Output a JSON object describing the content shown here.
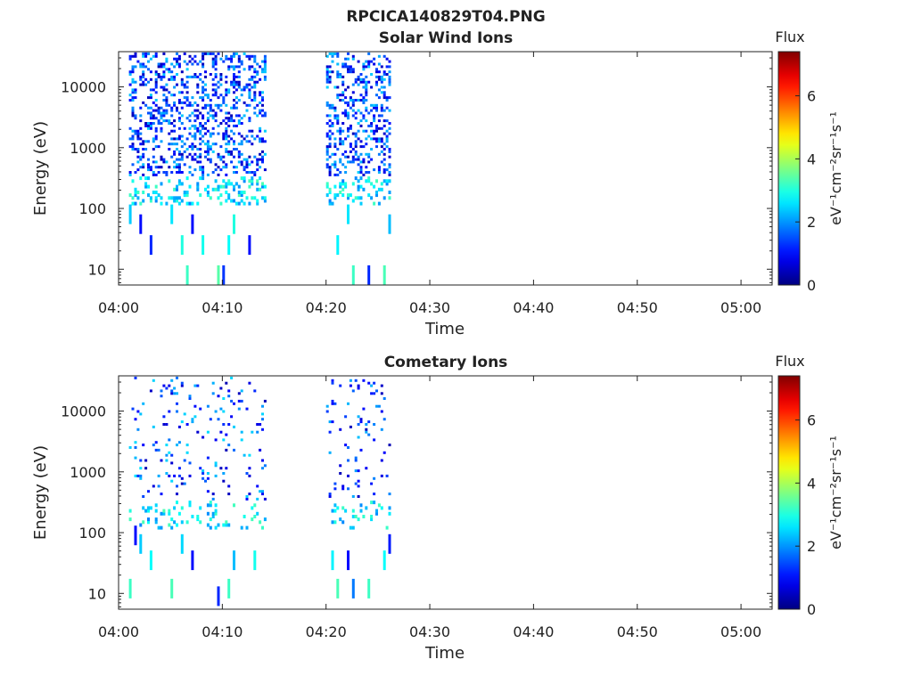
{
  "figure": {
    "title": "RPCICA140829T04.PNG"
  },
  "colorbar": {
    "title": "Flux",
    "unit_text": "eV⁻¹cm⁻²sr⁻¹s⁻¹",
    "ticks": [
      "0",
      "2",
      "4",
      "6"
    ],
    "range": [
      0,
      7.4
    ],
    "colormap": "jet"
  },
  "chart_data": [
    {
      "type": "heatmap",
      "title": "Solar Wind Ions",
      "xlabel": "Time",
      "ylabel": "Energy (eV)",
      "yscale": "log",
      "xlim": [
        "04:00",
        "05:03"
      ],
      "ylim": [
        5.5,
        38000
      ],
      "xticks": [
        "04:00",
        "04:10",
        "04:20",
        "04:30",
        "04:40",
        "04:50",
        "05:00"
      ],
      "yticks": [
        "10",
        "100",
        "1000",
        "10000"
      ],
      "data_intervals": [
        [
          "04:01",
          "04:14"
        ],
        [
          "04:20",
          "04:26"
        ]
      ],
      "cells": [
        {
          "t": "04:01",
          "e": 80,
          "flux": 2.4
        },
        {
          "t": "04:02",
          "e": 55,
          "flux": 1.0
        },
        {
          "t": "04:03",
          "e": 25,
          "flux": 1.2
        },
        {
          "t": "04:05",
          "e": 80,
          "flux": 2.6
        },
        {
          "t": "04:06",
          "e": 25,
          "flux": 3.0
        },
        {
          "t": "04:06.5",
          "e": 8,
          "flux": 3.2
        },
        {
          "t": "04:07",
          "e": 55,
          "flux": 1.0
        },
        {
          "t": "04:08",
          "e": 25,
          "flux": 2.9
        },
        {
          "t": "04:09.5",
          "e": 8,
          "flux": 3.4
        },
        {
          "t": "04:10",
          "e": 8,
          "flux": 1.3
        },
        {
          "t": "04:10.5",
          "e": 25,
          "flux": 2.8
        },
        {
          "t": "04:11",
          "e": 55,
          "flux": 3.0
        },
        {
          "t": "04:12.5",
          "e": 25,
          "flux": 1.0
        },
        {
          "t": "04:21",
          "e": 25,
          "flux": 2.7
        },
        {
          "t": "04:22",
          "e": 80,
          "flux": 2.6
        },
        {
          "t": "04:22.5",
          "e": 8,
          "flux": 3.2
        },
        {
          "t": "04:24",
          "e": 8,
          "flux": 1.2
        },
        {
          "t": "04:25.5",
          "e": 8,
          "flux": 3.3
        },
        {
          "t": "04:26",
          "e": 55,
          "flux": 2.3
        }
      ]
    },
    {
      "type": "heatmap",
      "title": "Cometary Ions",
      "xlabel": "Time",
      "ylabel": "Energy (eV)",
      "yscale": "log",
      "xlim": [
        "04:00",
        "05:03"
      ],
      "ylim": [
        5.5,
        38000
      ],
      "xticks": [
        "04:00",
        "04:10",
        "04:20",
        "04:30",
        "04:40",
        "04:50",
        "05:00"
      ],
      "yticks": [
        "10",
        "100",
        "1000",
        "10000"
      ],
      "data_intervals": [
        [
          "04:01",
          "04:14"
        ],
        [
          "04:20",
          "04:26"
        ]
      ],
      "cells": [
        {
          "t": "04:01",
          "e": 12,
          "flux": 3.2
        },
        {
          "t": "04:01.5",
          "e": 90,
          "flux": 1.0
        },
        {
          "t": "04:02",
          "e": 65,
          "flux": 2.4
        },
        {
          "t": "04:03",
          "e": 35,
          "flux": 2.8
        },
        {
          "t": "04:05",
          "e": 12,
          "flux": 3.3
        },
        {
          "t": "04:06",
          "e": 65,
          "flux": 2.5
        },
        {
          "t": "04:07",
          "e": 35,
          "flux": 1.0
        },
        {
          "t": "04:09.5",
          "e": 9,
          "flux": 1.2
        },
        {
          "t": "04:10.5",
          "e": 12,
          "flux": 3.2
        },
        {
          "t": "04:11",
          "e": 35,
          "flux": 2.3
        },
        {
          "t": "04:13",
          "e": 35,
          "flux": 2.9
        },
        {
          "t": "04:20.5",
          "e": 35,
          "flux": 2.7
        },
        {
          "t": "04:21",
          "e": 12,
          "flux": 3.3
        },
        {
          "t": "04:22",
          "e": 35,
          "flux": 1.0
        },
        {
          "t": "04:22.5",
          "e": 12,
          "flux": 1.8
        },
        {
          "t": "04:24",
          "e": 12,
          "flux": 3.2
        },
        {
          "t": "04:25.5",
          "e": 35,
          "flux": 2.8
        },
        {
          "t": "04:26",
          "e": 65,
          "flux": 1.1
        }
      ]
    }
  ]
}
